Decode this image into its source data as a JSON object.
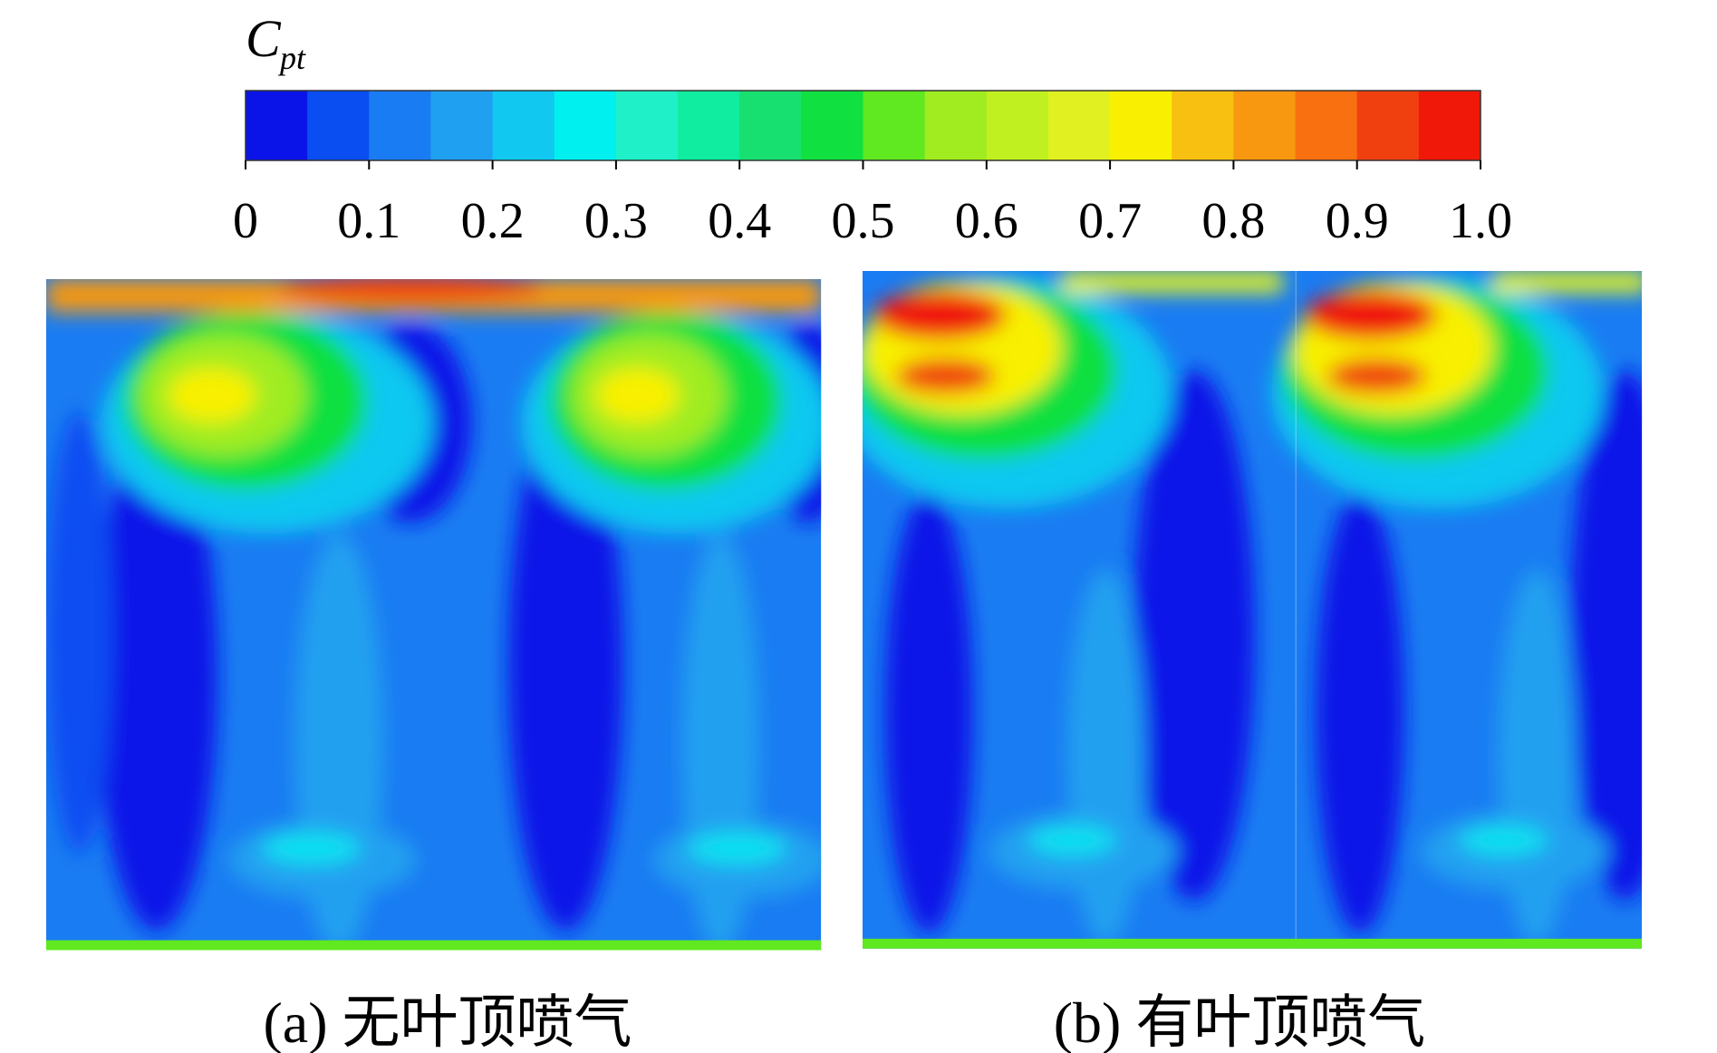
{
  "chart_data": {
    "type": "colorbar",
    "title": {
      "main": "C",
      "sub": "pt"
    },
    "xlim": [
      0,
      1
    ],
    "xticks": [
      0,
      0.1,
      0.2,
      0.3,
      0.4,
      0.5,
      0.6,
      0.7,
      0.8,
      0.9,
      {
        "value": 1,
        "label": "1.0"
      }
    ],
    "colors": [
      "#0a14e8",
      "#0a4ef2",
      "#1a7cf2",
      "#20a0f0",
      "#10c8f0",
      "#00f0f0",
      "#20f0c8",
      "#10eca0",
      "#18e070",
      "#10e040",
      "#60e820",
      "#a0ec20",
      "#c0f020",
      "#e0f020",
      "#f8f000",
      "#f8c010",
      "#f89810",
      "#f87010",
      "#f04010",
      "#f01808"
    ],
    "panels": [
      {
        "caption": "(a) 无叶顶喷气"
      },
      {
        "caption": "(b) 有叶顶喷气"
      }
    ]
  }
}
